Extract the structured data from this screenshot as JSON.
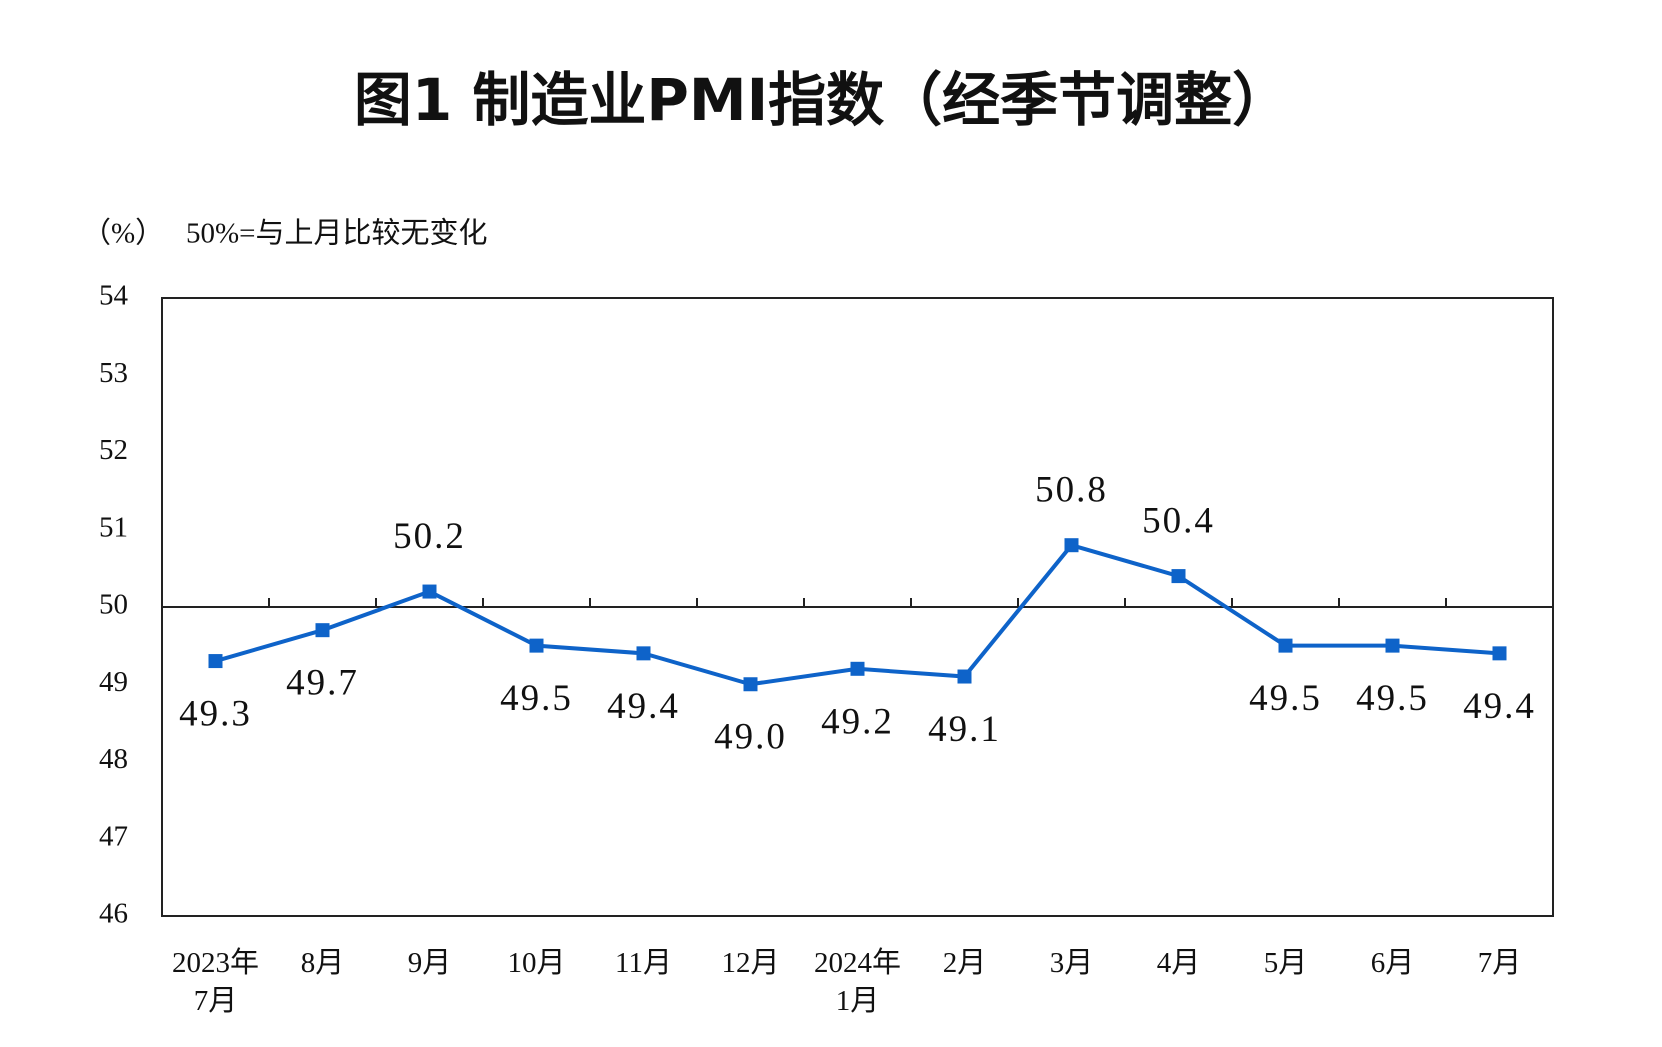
{
  "chart_data": {
    "type": "line",
    "title": "图1  制造业PMI指数（经季节调整）",
    "y_unit": "（%）",
    "subtitle": "50%=与上月比较无变化",
    "categories": [
      "2023年\n7月",
      "8月",
      "9月",
      "10月",
      "11月",
      "12月",
      "2024年\n1月",
      "2月",
      "3月",
      "4月",
      "5月",
      "6月",
      "7月"
    ],
    "series": [
      {
        "name": "制造业PMI",
        "color": "#0e63c9",
        "values": [
          49.3,
          49.7,
          50.2,
          49.5,
          49.4,
          49.0,
          49.2,
          49.1,
          50.8,
          50.4,
          49.5,
          49.5,
          49.4
        ],
        "value_labels": [
          "49.3",
          "49.7",
          "50.2",
          "49.5",
          "49.4",
          "49.0",
          "49.2",
          "49.1",
          "50.8",
          "50.4",
          "49.5",
          "49.5",
          "49.4"
        ]
      }
    ],
    "ylim": [
      46,
      54
    ],
    "yticks": [
      46,
      47,
      48,
      49,
      50,
      51,
      52,
      53,
      54
    ],
    "reference_line": 50
  }
}
